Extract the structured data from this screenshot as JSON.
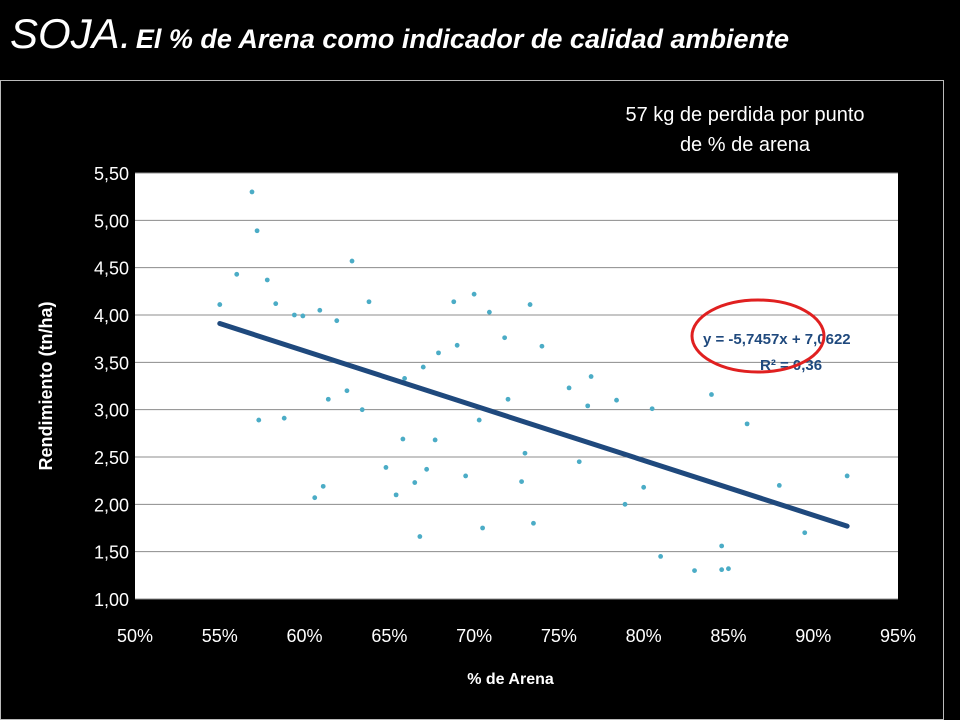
{
  "slide": {
    "title_main": "SOJA.",
    "title_sub": "El % de Arena como indicador de calidad ambiente",
    "annotation_line1": "57 kg de perdida por punto",
    "annotation_line2": "de % de arena"
  },
  "chart_data": {
    "type": "scatter",
    "xlabel": "% de Arena",
    "ylabel": "Rendimiento (tn/ha)",
    "xlim": [
      50,
      95
    ],
    "ylim": [
      1.0,
      5.5
    ],
    "xticks": [
      50,
      55,
      60,
      65,
      70,
      75,
      80,
      85,
      90,
      95
    ],
    "xtick_labels": [
      "50%",
      "55%",
      "60%",
      "65%",
      "70%",
      "75%",
      "80%",
      "85%",
      "90%",
      "95%"
    ],
    "yticks": [
      1.0,
      1.5,
      2.0,
      2.5,
      3.0,
      3.5,
      4.0,
      4.5,
      5.0,
      5.5
    ],
    "ytick_labels": [
      "1,00",
      "1,50",
      "2,00",
      "2,50",
      "3,00",
      "3,50",
      "4,00",
      "4,50",
      "5,00",
      "5,50"
    ],
    "grid": "horizontal",
    "point_color": "#4BACC6",
    "trend_color": "#1F497D",
    "highlight_color": "#E02020",
    "points": [
      [
        55.0,
        4.11
      ],
      [
        56.0,
        4.43
      ],
      [
        56.9,
        5.3
      ],
      [
        57.2,
        4.89
      ],
      [
        57.3,
        2.89
      ],
      [
        57.8,
        4.37
      ],
      [
        58.3,
        4.12
      ],
      [
        58.8,
        2.91
      ],
      [
        59.4,
        4.0
      ],
      [
        59.9,
        3.99
      ],
      [
        60.6,
        2.07
      ],
      [
        60.9,
        4.05
      ],
      [
        61.1,
        2.19
      ],
      [
        61.4,
        3.11
      ],
      [
        61.9,
        3.94
      ],
      [
        62.5,
        3.2
      ],
      [
        62.8,
        4.57
      ],
      [
        63.4,
        3.0
      ],
      [
        63.8,
        4.14
      ],
      [
        64.8,
        2.39
      ],
      [
        65.4,
        2.1
      ],
      [
        65.8,
        2.69
      ],
      [
        65.9,
        3.33
      ],
      [
        66.5,
        2.23
      ],
      [
        66.8,
        1.66
      ],
      [
        67.0,
        3.45
      ],
      [
        67.2,
        2.37
      ],
      [
        67.7,
        2.68
      ],
      [
        67.9,
        3.6
      ],
      [
        68.8,
        4.14
      ],
      [
        69.0,
        3.68
      ],
      [
        69.5,
        2.3
      ],
      [
        70.0,
        4.22
      ],
      [
        70.3,
        2.89
      ],
      [
        70.5,
        1.75
      ],
      [
        70.9,
        4.03
      ],
      [
        71.8,
        3.76
      ],
      [
        72.0,
        3.11
      ],
      [
        72.8,
        2.24
      ],
      [
        73.0,
        2.54
      ],
      [
        73.3,
        4.11
      ],
      [
        73.5,
        1.8
      ],
      [
        74.0,
        3.67
      ],
      [
        75.6,
        3.23
      ],
      [
        76.2,
        2.45
      ],
      [
        76.7,
        3.04
      ],
      [
        76.9,
        3.35
      ],
      [
        78.4,
        3.1
      ],
      [
        78.9,
        2.0
      ],
      [
        80.0,
        2.18
      ],
      [
        80.5,
        3.01
      ],
      [
        81.0,
        1.45
      ],
      [
        83.0,
        1.3
      ],
      [
        84.0,
        3.16
      ],
      [
        84.6,
        1.56
      ],
      [
        84.6,
        1.31
      ],
      [
        85.0,
        1.32
      ],
      [
        86.1,
        2.85
      ],
      [
        88.0,
        2.2
      ],
      [
        89.5,
        1.7
      ],
      [
        92.0,
        2.3
      ]
    ],
    "trendline": {
      "x": [
        55.0,
        92.0
      ],
      "y": [
        3.91,
        1.77
      ],
      "equation": "y = -5,7457x + 7,0622",
      "r2": "R² = 0,36"
    }
  }
}
